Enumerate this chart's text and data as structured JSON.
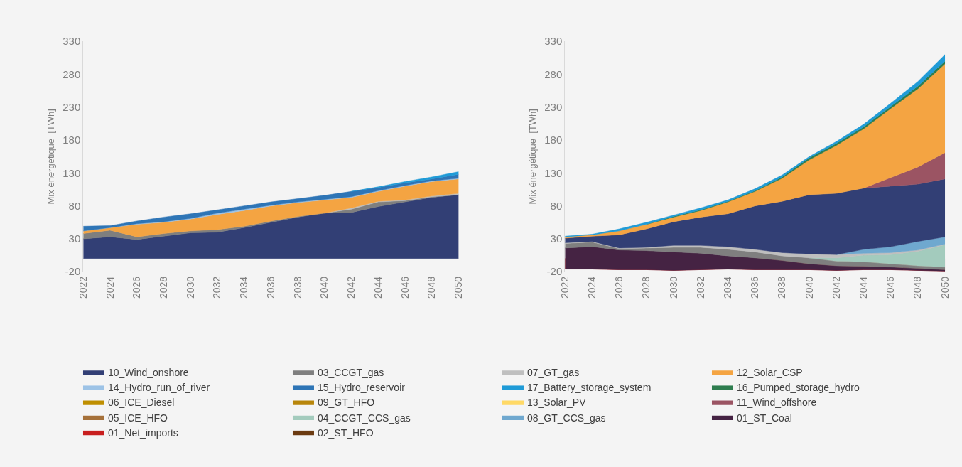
{
  "chart_data": [
    {
      "type": "area",
      "stacked": true,
      "ylabel": "Mix énergétique  [TWh]",
      "x": [
        2022,
        2024,
        2026,
        2028,
        2030,
        2032,
        2034,
        2036,
        2038,
        2040,
        2042,
        2044,
        2046,
        2048,
        2050
      ],
      "xlim": [
        2022,
        2050
      ],
      "xticks": [
        2022,
        2024,
        2026,
        2028,
        2030,
        2032,
        2034,
        2036,
        2038,
        2040,
        2042,
        2044,
        2046,
        2048,
        2050
      ],
      "ylim": [
        -20,
        330
      ],
      "yticks": [
        -20,
        30,
        80,
        130,
        180,
        230,
        280,
        330
      ],
      "grid": false,
      "legend": "bottom",
      "series": [
        {
          "name": "10_Wind_onshore",
          "color": "#323f75",
          "values": [
            30,
            33,
            29,
            34,
            39,
            40,
            47,
            55,
            63,
            69,
            70,
            79,
            86,
            93,
            97
          ]
        },
        {
          "name": "03_CCGT_gas",
          "color": "#7f7f7f",
          "values": [
            8,
            10,
            4,
            4,
            3,
            4,
            2,
            2,
            1,
            0,
            5,
            7,
            2,
            1,
            0
          ]
        },
        {
          "name": "07_GT_gas",
          "color": "#bfbfbf",
          "values": [
            null,
            null,
            null,
            null,
            null,
            null,
            null,
            null,
            null,
            0,
            2,
            1,
            1,
            1,
            2
          ]
        },
        {
          "name": "12_Solar_CSP",
          "color": "#f4a442",
          "values": [
            4,
            4,
            19,
            17,
            18,
            23,
            24,
            23,
            21,
            20,
            16,
            15,
            21,
            22,
            22
          ]
        },
        {
          "name": "14_Hydro_run_of_river",
          "color": "#9dc3e6",
          "values": [
            0,
            0,
            1,
            1,
            1,
            2,
            2,
            1,
            1,
            1,
            1,
            1,
            1,
            1,
            1
          ]
        },
        {
          "name": "15_Hydro_reservoir",
          "color": "#2e75b6",
          "values": [
            7,
            3,
            4,
            7,
            7,
            5,
            5,
            5,
            5,
            6,
            8,
            5,
            4,
            3,
            6
          ]
        },
        {
          "name": "17_Battery_storage_system",
          "color": "#1f9bd7",
          "values": [
            null,
            null,
            null,
            null,
            null,
            null,
            null,
            null,
            null,
            null,
            0,
            1,
            2,
            3,
            4
          ]
        },
        {
          "name": "16_Pumped_storage_hydro",
          "color": "#2e7d4f",
          "values": [
            null,
            null,
            null,
            null,
            null,
            null,
            null,
            null,
            null,
            null,
            null,
            null,
            null,
            null,
            null
          ]
        },
        {
          "name": "06_ICE_Diesel",
          "color": "#bf8f00",
          "values": [
            null,
            null,
            null,
            null,
            null,
            null,
            null,
            null,
            null,
            null,
            null,
            null,
            null,
            null,
            null
          ]
        },
        {
          "name": "09_GT_HFO",
          "color": "#b8860b",
          "values": [
            null,
            null,
            null,
            null,
            null,
            null,
            null,
            null,
            null,
            null,
            null,
            null,
            null,
            null,
            null
          ]
        },
        {
          "name": "13_Solar_PV",
          "color": "#ffd966",
          "values": [
            null,
            null,
            null,
            null,
            null,
            null,
            null,
            null,
            null,
            null,
            null,
            null,
            null,
            null,
            null
          ]
        },
        {
          "name": "11_Wind_offshore",
          "color": "#9b5463",
          "values": [
            null,
            null,
            null,
            null,
            null,
            null,
            null,
            null,
            null,
            null,
            null,
            null,
            null,
            null,
            null
          ]
        },
        {
          "name": "05_ICE_HFO",
          "color": "#a5713a",
          "values": [
            null,
            null,
            null,
            null,
            null,
            null,
            null,
            null,
            null,
            null,
            null,
            null,
            null,
            null,
            null
          ]
        },
        {
          "name": "04_CCGT_CCS_gas",
          "color": "#a3cbbd",
          "values": [
            null,
            null,
            null,
            null,
            null,
            null,
            null,
            null,
            null,
            null,
            null,
            null,
            null,
            null,
            null
          ]
        },
        {
          "name": "08_GT_CCS_gas",
          "color": "#6fa8cf",
          "values": [
            null,
            null,
            null,
            null,
            null,
            null,
            null,
            null,
            null,
            null,
            null,
            null,
            null,
            null,
            null
          ]
        },
        {
          "name": "01_ST_Coal",
          "color": "#452343",
          "values": [
            null,
            null,
            null,
            null,
            null,
            null,
            null,
            null,
            null,
            null,
            null,
            null,
            null,
            null,
            null
          ]
        },
        {
          "name": "01_Net_imports",
          "color": "#c81e1e",
          "values": [
            null,
            null,
            null,
            null,
            null,
            null,
            null,
            null,
            null,
            null,
            null,
            null,
            null,
            null,
            null
          ]
        },
        {
          "name": "02_ST_HFO",
          "color": "#6b3a10",
          "values": [
            null,
            null,
            null,
            null,
            null,
            null,
            null,
            null,
            null,
            null,
            null,
            null,
            null,
            null,
            null
          ]
        }
      ]
    },
    {
      "type": "area",
      "stacked": true,
      "ylabel": "Mix énergétique  [TWh]",
      "x": [
        2022,
        2024,
        2026,
        2028,
        2030,
        2032,
        2034,
        2036,
        2038,
        2040,
        2042,
        2044,
        2046,
        2048,
        2050
      ],
      "xlim": [
        2022,
        2050
      ],
      "xticks": [
        2022,
        2024,
        2026,
        2028,
        2030,
        2032,
        2034,
        2036,
        2038,
        2040,
        2042,
        2044,
        2046,
        2048,
        2050
      ],
      "ylim": [
        -20,
        330
      ],
      "yticks": [
        -20,
        30,
        80,
        130,
        180,
        230,
        280,
        330
      ],
      "grid": false,
      "series": [
        {
          "color": "#c81e1e",
          "values": [
            -16,
            -16,
            -17,
            -17,
            -18,
            -17,
            -16,
            -17,
            -17,
            -17,
            -18,
            -17,
            -17,
            -18,
            -19
          ]
        },
        {
          "color": "#452343",
          "values": [
            32,
            34,
            30,
            29,
            28,
            25,
            20,
            18,
            14,
            9,
            7,
            5,
            4,
            3,
            2
          ]
        },
        {
          "color": "#7f7f7f",
          "values": [
            7,
            7,
            2,
            4,
            7,
            9,
            10,
            9,
            7,
            9,
            7,
            7,
            5,
            4,
            4
          ]
        },
        {
          "color": "#a3cbbd",
          "values": [
            null,
            null,
            null,
            null,
            null,
            null,
            null,
            null,
            null,
            0,
            5,
            10,
            14,
            22,
            34
          ]
        },
        {
          "color": "#bfbfbf",
          "values": [
            1,
            1,
            1,
            1,
            3,
            3,
            4,
            4,
            5,
            6,
            5,
            3,
            3,
            2,
            1
          ]
        },
        {
          "color": "#6fa8cf",
          "values": [
            null,
            null,
            null,
            null,
            null,
            null,
            null,
            null,
            null,
            null,
            0,
            6,
            9,
            13,
            11
          ]
        },
        {
          "color": "#323f75",
          "values": [
            7,
            8,
            20,
            28,
            36,
            43,
            50,
            66,
            78,
            90,
            93,
            93,
            92,
            87,
            88
          ]
        },
        {
          "color": "#9b5463",
          "values": [
            null,
            null,
            null,
            null,
            null,
            null,
            null,
            null,
            null,
            null,
            null,
            0,
            13,
            26,
            40
          ]
        },
        {
          "color": "#f4a442",
          "values": [
            2,
            2,
            6,
            7,
            7,
            10,
            18,
            22,
            35,
            53,
            73,
            90,
            105,
            119,
            135
          ]
        },
        {
          "color": "#2e7d4f",
          "values": [
            null,
            null,
            null,
            0,
            1,
            1,
            1,
            1,
            2,
            3,
            3,
            3,
            3,
            4,
            4
          ]
        },
        {
          "color": "#1f9bd7",
          "values": [
            1,
            1,
            3,
            3,
            2,
            3,
            2,
            3,
            3,
            2,
            3,
            4,
            5,
            7,
            10
          ]
        }
      ]
    }
  ]
}
